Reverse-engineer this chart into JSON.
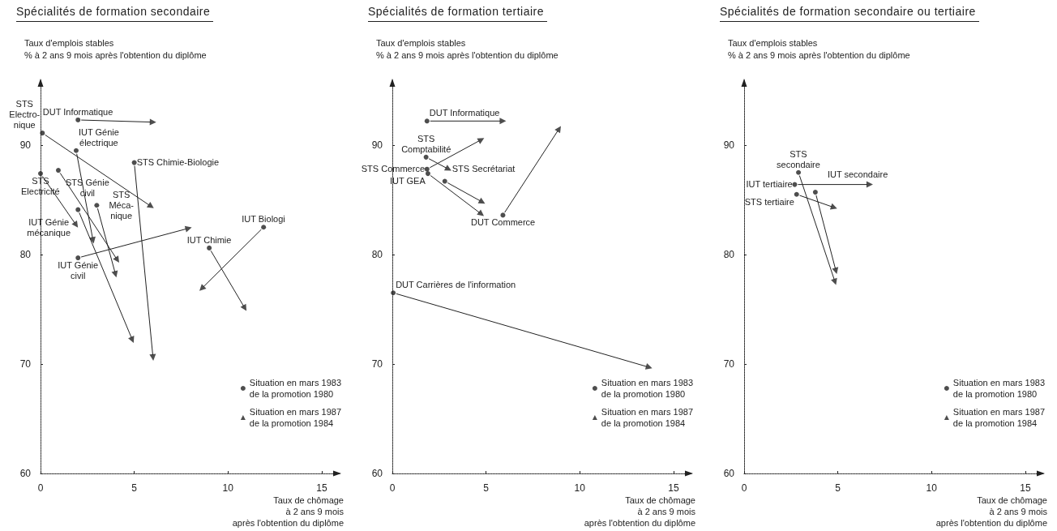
{
  "chart_data": [
    {
      "type": "scatter",
      "title": "Spécialités de formation secondaire",
      "ylabel": "Taux d'emplois stables\n% à 2 ans 9 mois après l'obtention du diplôme",
      "xlabel": "Taux de chômage\nà 2 ans 9 mois\naprès l'obtention du diplôme",
      "xlim": [
        0,
        16
      ],
      "xticks": [
        0,
        5,
        10,
        15
      ],
      "ylim": [
        60,
        96
      ],
      "yticks": [
        60,
        70,
        80,
        90
      ],
      "legend": "bottom right",
      "annotations": [
        {
          "text": "DUT Informatique",
          "x": 2,
          "y": 92.3
        },
        {
          "text": "STS\nElectro-\nnique",
          "x": 0.1,
          "y": 91.1
        },
        {
          "text": "IUT Génie\nélectrique",
          "x": 1.9,
          "y": 89.5
        },
        {
          "text": "STS Chimie-Biologie",
          "x": 5,
          "y": 88.4
        },
        {
          "text": "STS\nElectricité",
          "x": 0,
          "y": 87.4
        },
        {
          "text": "STS Génie\ncivil",
          "x": 0.95,
          "y": 87.7
        },
        {
          "text": "STS\nMéca-\nnique",
          "x": 3,
          "y": 84.5
        },
        {
          "text": "IUT Génie\nmécanique",
          "x": 2,
          "y": 84.1
        },
        {
          "text": "IUT Génie\ncivil",
          "x": 2,
          "y": 79.7
        },
        {
          "text": "IUT Biologi",
          "x": 11.9,
          "y": 82.5
        },
        {
          "text": "IUT Chimie",
          "x": 9,
          "y": 80.6
        }
      ],
      "series": [
        {
          "name": "Situation en mars 1983\nde la promotion 1980",
          "color": "#222222",
          "marker": "circle",
          "x": [
            2,
            0.1,
            1.9,
            5,
            0,
            0.95,
            3,
            2,
            2,
            11.9,
            9
          ],
          "values": [
            92.3,
            91.1,
            89.5,
            88.4,
            87.4,
            87.7,
            84.5,
            84.1,
            79.7,
            82.5,
            80.6
          ]
        },
        {
          "name": "Situation en mars 1987\nde la promotion 1984",
          "color": "#222222",
          "marker": "triangle",
          "x": [
            6,
            5.9,
            2.8,
            6,
            1.9,
            4.1,
            4,
            4.9,
            7.9,
            8.6,
            10.9
          ],
          "values": [
            92.1,
            84.4,
            81.3,
            70.6,
            82.7,
            79.5,
            78.2,
            72.2,
            82.4,
            76.9,
            75.1
          ]
        }
      ]
    },
    {
      "type": "scatter",
      "title": "Spécialités de formation tertiaire",
      "ylabel": "Taux d'emplois stables\n% à 2 ans 9 mois après l'obtention du diplôme",
      "xlabel": "Taux de chômage\nà 2 ans 9 mois\naprès l'obtention du diplôme",
      "xlim": [
        0,
        16
      ],
      "xticks": [
        0,
        5,
        10,
        15
      ],
      "ylim": [
        60,
        96
      ],
      "yticks": [
        60,
        70,
        80,
        90
      ],
      "legend": "bottom right",
      "annotations": [
        {
          "text": "DUT Informatique",
          "x": 1.85,
          "y": 92.2
        },
        {
          "text": "STS\nComptabilité",
          "x": 1.8,
          "y": 88.9
        },
        {
          "text": "STS Commerce",
          "x": 1.85,
          "y": 87.8
        },
        {
          "text": "IUT GEA",
          "x": 1.9,
          "y": 87.4
        },
        {
          "text": "STS Secrétariat",
          "x": 2.8,
          "y": 86.7
        },
        {
          "text": "DUT Commerce",
          "x": 5.9,
          "y": 83.6
        },
        {
          "text": "DUT Carrières de l'information",
          "x": 0.05,
          "y": 76.5
        }
      ],
      "series": [
        {
          "name": "Situation en mars 1983\nde la promotion 1980",
          "color": "#222222",
          "marker": "circle",
          "x": [
            1.85,
            1.8,
            1.85,
            1.9,
            2.8,
            5.9,
            0.05
          ],
          "values": [
            92.2,
            88.9,
            87.8,
            87.4,
            86.7,
            83.6,
            76.5
          ]
        },
        {
          "name": "Situation en mars 1987\nde la promotion 1984",
          "color": "#222222",
          "marker": "triangle",
          "x": [
            5.9,
            3,
            4.75,
            4.75,
            4.8,
            8.9,
            13.7
          ],
          "values": [
            92.2,
            87.8,
            90.5,
            83.7,
            84.8,
            91.5,
            69.7
          ]
        }
      ]
    },
    {
      "type": "scatter",
      "title": "Spécialités de formation secondaire ou tertiaire",
      "ylabel": "Taux d'emplois stables\n% à 2 ans 9 mois après l'obtention du diplôme",
      "xlabel": "Taux de chômage\nà 2 ans 9 mois\naprès l'obtention du diplôme",
      "xlim": [
        0,
        16
      ],
      "xticks": [
        0,
        5,
        10,
        15
      ],
      "ylim": [
        60,
        96
      ],
      "yticks": [
        60,
        70,
        80,
        90
      ],
      "legend": "bottom right",
      "annotations": [
        {
          "text": "IUT tertiaire",
          "x": 2.7,
          "y": 86.4
        },
        {
          "text": "STS tertiaire",
          "x": 2.8,
          "y": 85.5
        },
        {
          "text": "STS\nsecondaire",
          "x": 2.9,
          "y": 87.5
        },
        {
          "text": "IUT secondaire",
          "x": 3.8,
          "y": 85.7
        }
      ],
      "series": [
        {
          "name": "Situation en mars 1983\nde la promotion 1980",
          "color": "#222222",
          "marker": "circle",
          "x": [
            2.7,
            2.8,
            2.9,
            3.8
          ],
          "values": [
            86.4,
            85.5,
            87.5,
            85.7
          ]
        },
        {
          "name": "Situation en mars 1987\nde la promotion 1984",
          "color": "#222222",
          "marker": "triangle",
          "x": [
            6.7,
            4.8,
            4.85,
            4.9
          ],
          "values": [
            86.4,
            84.3,
            77.5,
            78.5
          ]
        }
      ]
    }
  ]
}
